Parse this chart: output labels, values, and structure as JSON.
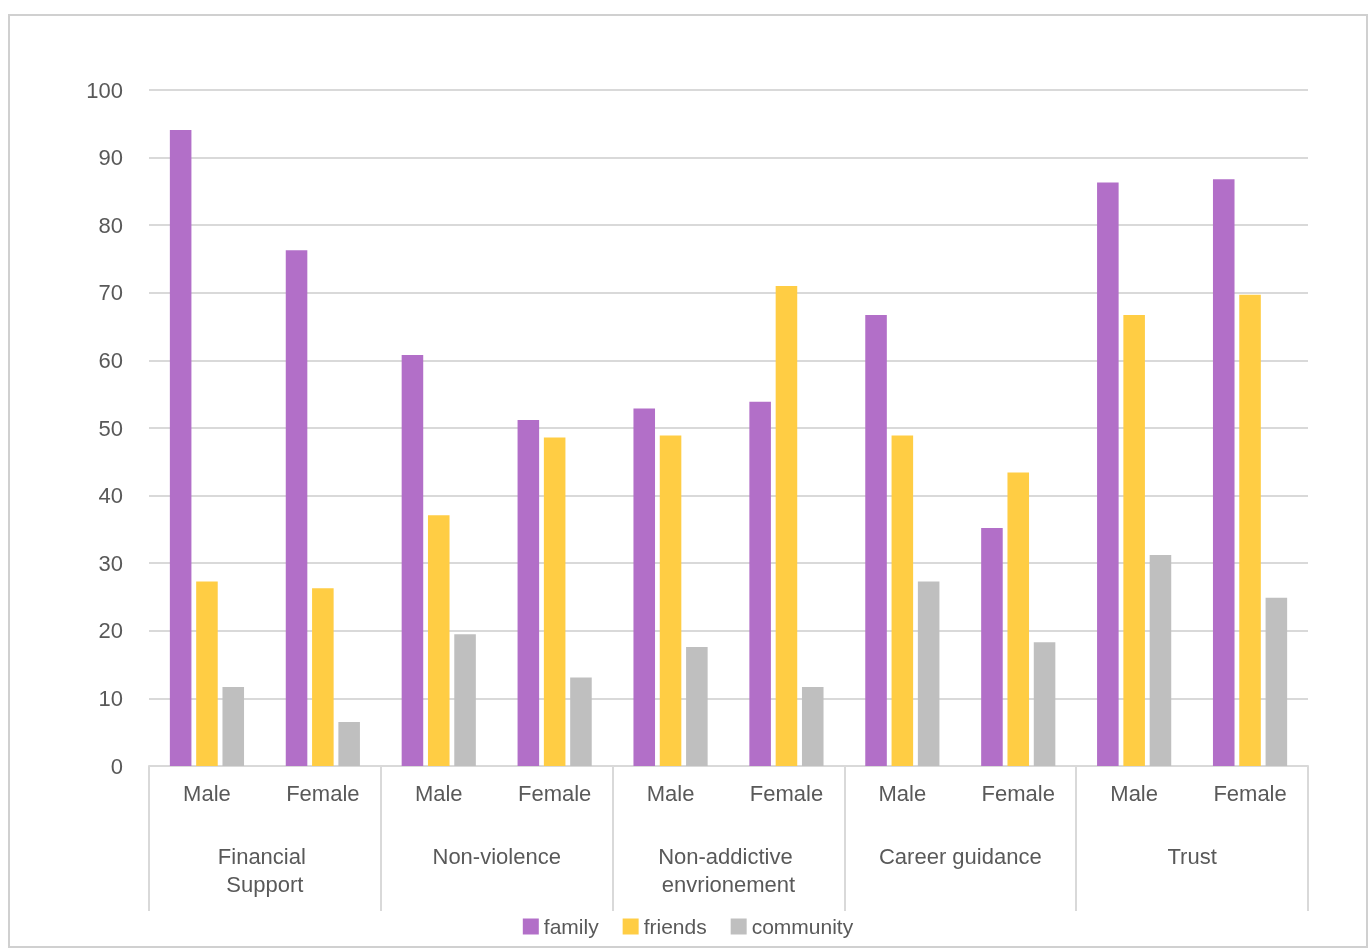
{
  "chart_data": {
    "type": "bar",
    "categories": [
      "Male",
      "Female",
      "Male",
      "Female",
      "Male",
      "Female",
      "Male",
      "Female",
      "Male",
      "Female"
    ],
    "annotations": [
      "Financial Support",
      "Non-violence",
      "Non-addictive envrionement",
      "Career guidance",
      "Trust"
    ],
    "series": [
      {
        "name": "family",
        "color": "#b26fc8",
        "values": [
          94.1,
          76.3,
          60.8,
          51.2,
          52.9,
          53.9,
          66.7,
          35.2,
          86.3,
          86.8
        ]
      },
      {
        "name": "friends",
        "color": "#ffcd44",
        "values": [
          27.3,
          26.3,
          37.1,
          48.6,
          48.9,
          71.0,
          48.9,
          43.4,
          66.7,
          69.7
        ]
      },
      {
        "name": "community",
        "color": "#bfbfbf",
        "values": [
          11.7,
          6.5,
          19.5,
          13.1,
          17.6,
          11.7,
          27.3,
          18.3,
          31.2,
          24.9
        ]
      }
    ],
    "ylim": [
      0,
      100
    ],
    "yticks": [
      0,
      10,
      20,
      30,
      40,
      50,
      60,
      70,
      80,
      90,
      100
    ],
    "grid": "y",
    "legend": "bottom"
  }
}
